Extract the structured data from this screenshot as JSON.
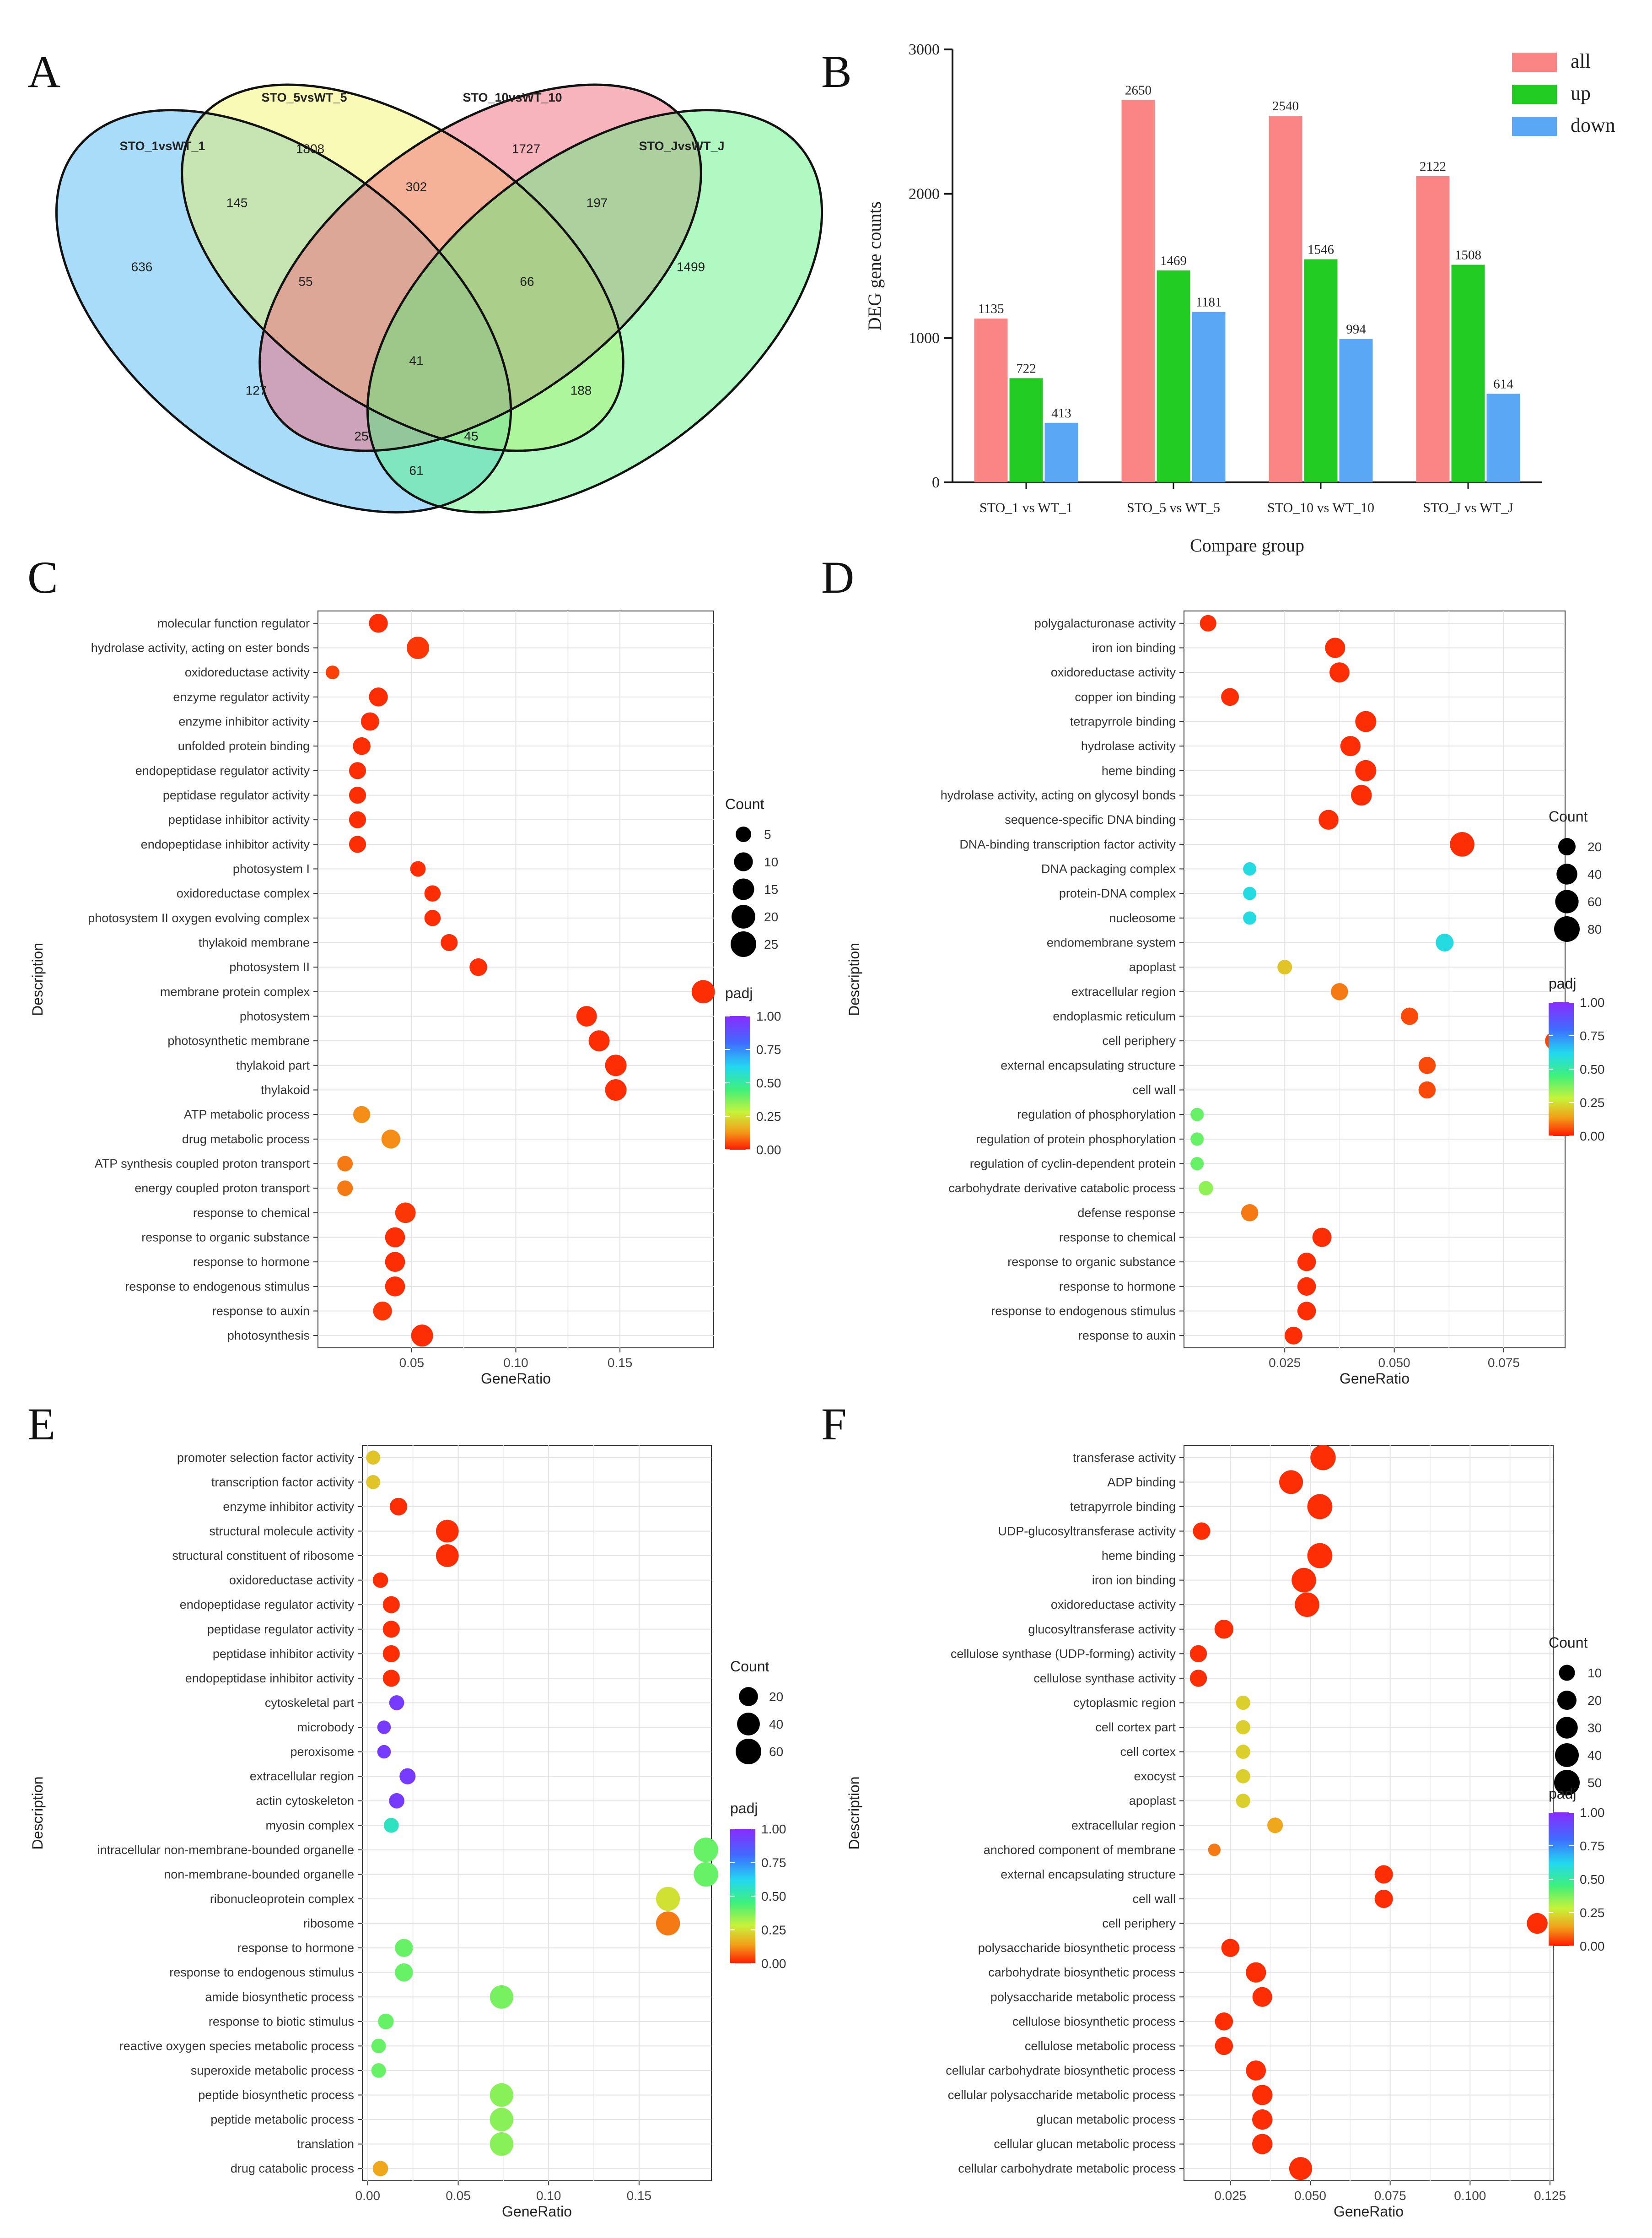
{
  "chart_data": [
    {
      "panel": "A",
      "type": "venn",
      "sets": [
        "STO_1vsWT_1",
        "STO_5vsWT_5",
        "STO_10vsWT_10",
        "STO_JvsWT_J"
      ],
      "set_colors": [
        "#3fb1f0",
        "#f2f24a",
        "#f26a7a",
        "#4ff27a"
      ],
      "regions": [
        {
          "label": "636",
          "sets": [
            "STO_1vsWT_1"
          ]
        },
        {
          "label": "1808",
          "sets": [
            "STO_5vsWT_5"
          ]
        },
        {
          "label": "1727",
          "sets": [
            "STO_10vsWT_10"
          ]
        },
        {
          "label": "1499",
          "sets": [
            "STO_JvsWT_J"
          ]
        },
        {
          "label": "145",
          "sets": [
            "STO_1vsWT_1",
            "STO_5vsWT_5"
          ]
        },
        {
          "label": "302",
          "sets": [
            "STO_5vsWT_5",
            "STO_10vsWT_10"
          ]
        },
        {
          "label": "197",
          "sets": [
            "STO_10vsWT_10",
            "STO_JvsWT_J"
          ]
        },
        {
          "label": "55",
          "sets": [
            "STO_1vsWT_1",
            "STO_5vsWT_5",
            "STO_10vsWT_10"
          ]
        },
        {
          "label": "66",
          "sets": [
            "STO_5vsWT_5",
            "STO_10vsWT_10",
            "STO_JvsWT_J"
          ]
        },
        {
          "label": "41",
          "sets": [
            "STO_1vsWT_1",
            "STO_5vsWT_5",
            "STO_10vsWT_10",
            "STO_JvsWT_J"
          ]
        },
        {
          "label": "127",
          "sets": [
            "STO_1vsWT_1",
            "STO_10vsWT_10"
          ]
        },
        {
          "label": "188",
          "sets": [
            "STO_5vsWT_5",
            "STO_JvsWT_J"
          ]
        },
        {
          "label": "25",
          "sets": [
            "STO_1vsWT_1",
            "STO_10vsWT_10",
            "STO_JvsWT_J"
          ]
        },
        {
          "label": "45",
          "sets": [
            "STO_1vsWT_1",
            "STO_5vsWT_5",
            "STO_JvsWT_J"
          ]
        },
        {
          "label": "61",
          "sets": [
            "STO_1vsWT_1",
            "STO_JvsWT_J"
          ]
        }
      ]
    },
    {
      "panel": "B",
      "type": "bar",
      "categories": [
        "STO_1 vs WT_1",
        "STO_5 vs WT_5",
        "STO_10 vs WT_10",
        "STO_J vs WT_J"
      ],
      "series": [
        {
          "name": "all",
          "color": "#f98585",
          "values": [
            1135,
            2650,
            2540,
            2122
          ]
        },
        {
          "name": "up",
          "color": "#23cc23",
          "values": [
            722,
            1469,
            1546,
            1508
          ]
        },
        {
          "name": "down",
          "color": "#5aa8f5",
          "values": [
            413,
            1181,
            994,
            614
          ]
        }
      ],
      "xlabel": "Compare group",
      "ylabel": "DEG gene counts",
      "ylim": [
        0,
        3000
      ],
      "yticks": [
        0,
        1000,
        2000,
        3000
      ],
      "legend": "top-right"
    },
    {
      "panel": "C",
      "type": "scatter",
      "xlabel": "GeneRatio",
      "ylabel": "Description",
      "xlim": [
        0.005,
        0.195
      ],
      "xticks": [
        0.05,
        0.1,
        0.15
      ],
      "xticklabels": [
        "0.05",
        "0.10",
        "0.15"
      ],
      "size_legend": {
        "title": "Count",
        "values": [
          5,
          10,
          15,
          20,
          25
        ]
      },
      "color_legend": {
        "title": "padj",
        "ticks": [
          "1.00",
          "0.75",
          "0.50",
          "0.25",
          "0.00"
        ]
      },
      "terms": [
        "molecular function regulator",
        "hydrolase activity, acting on ester bonds",
        "oxidoreductase activity",
        "enzyme regulator activity",
        "enzyme inhibitor activity",
        "unfolded protein binding",
        "endopeptidase regulator activity",
        "peptidase regulator activity",
        "peptidase inhibitor activity",
        "endopeptidase inhibitor activity",
        "photosystem I",
        "oxidoreductase complex",
        "photosystem II oxygen evolving complex",
        "thylakoid membrane",
        "photosystem II",
        "membrane protein complex",
        "photosystem",
        "photosynthetic membrane",
        "thylakoid part",
        "thylakoid",
        "ATP metabolic process",
        "drug metabolic process",
        "ATP synthesis coupled proton transport",
        "energy coupled proton transport",
        "response to chemical",
        "response to organic substance",
        "response to hormone",
        "response to endogenous stimulus",
        "response to auxin",
        "photosynthesis"
      ],
      "gene_ratio": [
        0.034,
        0.053,
        0.012,
        0.034,
        0.03,
        0.026,
        0.024,
        0.024,
        0.024,
        0.024,
        0.053,
        0.06,
        0.06,
        0.068,
        0.082,
        0.19,
        0.134,
        0.14,
        0.148,
        0.148,
        0.026,
        0.04,
        0.018,
        0.018,
        0.047,
        0.042,
        0.042,
        0.042,
        0.036,
        0.055
      ],
      "count": [
        10,
        17,
        3,
        10,
        9,
        8,
        7,
        7,
        7,
        7,
        5,
        6,
        6,
        7,
        8,
        19,
        13,
        14,
        15,
        15,
        7,
        10,
        5,
        5,
        13,
        12,
        12,
        12,
        10,
        16
      ],
      "padj": [
        0.02,
        0.03,
        0.04,
        0.02,
        0.02,
        0.02,
        0.02,
        0.02,
        0.02,
        0.02,
        0.02,
        0.02,
        0.02,
        0.02,
        0.02,
        0.02,
        0.02,
        0.02,
        0.02,
        0.02,
        0.12,
        0.12,
        0.1,
        0.1,
        0.03,
        0.02,
        0.02,
        0.02,
        0.03,
        0.02
      ]
    },
    {
      "panel": "D",
      "type": "scatter",
      "xlabel": "GeneRatio",
      "ylabel": "Description",
      "xlim": [
        0.002,
        0.089
      ],
      "xticks": [
        0.025,
        0.05,
        0.075
      ],
      "xticklabels": [
        "0.025",
        "0.050",
        "0.075"
      ],
      "size_legend": {
        "title": "Count",
        "values": [
          20,
          40,
          60,
          80
        ]
      },
      "color_legend": {
        "title": "padj",
        "ticks": [
          "1.00",
          "0.75",
          "0.50",
          "0.25",
          "0.00"
        ]
      },
      "terms": [
        "polygalacturonase activity",
        "iron ion binding",
        "oxidoreductase activity",
        "copper ion binding",
        "tetrapyrrole binding",
        "hydrolase activity",
        "heme binding",
        "hydrolase activity, acting on glycosyl bonds",
        "sequence-specific DNA binding",
        "DNA-binding transcription factor activity",
        "DNA packaging complex",
        "protein-DNA complex",
        "nucleosome",
        "endomembrane system",
        "apoplast",
        "extracellular region",
        "endoplasmic reticulum",
        "cell periphery",
        "external encapsulating structure",
        "cell wall",
        "regulation of phosphorylation",
        "regulation of protein phosphorylation",
        "regulation of cyclin-dependent protein",
        "carbohydrate derivative catabolic process",
        "defense response",
        "response to chemical",
        "response to organic substance",
        "response to hormone",
        "response to endogenous stimulus",
        "response to auxin"
      ],
      "gene_ratio": [
        0.0075,
        0.0365,
        0.0375,
        0.0125,
        0.0435,
        0.04,
        0.0435,
        0.0425,
        0.035,
        0.0655,
        0.017,
        0.017,
        0.017,
        0.0615,
        0.025,
        0.0375,
        0.0535,
        0.0865,
        0.0575,
        0.0575,
        0.005,
        0.005,
        0.005,
        0.007,
        0.017,
        0.0335,
        0.03,
        0.03,
        0.03,
        0.027
      ],
      "count": [
        16,
        36,
        35,
        22,
        42,
        36,
        42,
        40,
        34,
        70,
        5,
        5,
        5,
        22,
        9,
        19,
        20,
        24,
        19,
        19,
        5,
        5,
        5,
        8,
        19,
        30,
        26,
        26,
        26,
        22
      ],
      "padj": [
        0.02,
        0.02,
        0.02,
        0.02,
        0.02,
        0.02,
        0.02,
        0.02,
        0.02,
        0.02,
        0.6,
        0.6,
        0.6,
        0.6,
        0.2,
        0.1,
        0.05,
        0.05,
        0.05,
        0.05,
        0.4,
        0.4,
        0.4,
        0.35,
        0.1,
        0.02,
        0.02,
        0.02,
        0.02,
        0.02
      ]
    },
    {
      "panel": "E",
      "type": "scatter",
      "xlabel": "GeneRatio",
      "ylabel": "Description",
      "xlim": [
        -0.003,
        0.19
      ],
      "xticks": [
        0.0,
        0.05,
        0.1,
        0.15
      ],
      "xticklabels": [
        "0.00",
        "0.05",
        "0.10",
        "0.15"
      ],
      "size_legend": {
        "title": "Count",
        "values": [
          20,
          40,
          60
        ]
      },
      "color_legend": {
        "title": "padj",
        "ticks": [
          "1.00",
          "0.75",
          "0.50",
          "0.25",
          "0.00"
        ]
      },
      "terms": [
        "promoter selection factor activity",
        "transcription factor activity",
        "enzyme inhibitor activity",
        "structural molecule activity",
        "structural constituent of ribosome",
        "oxidoreductase activity",
        "endopeptidase regulator activity",
        "peptidase regulator activity",
        "peptidase inhibitor activity",
        "endopeptidase inhibitor activity",
        "cytoskeletal part",
        "microbody",
        "peroxisome",
        "extracellular region",
        "actin cytoskeleton",
        "myosin complex",
        "intracellular non-membrane-bounded organelle",
        "non-membrane-bounded organelle",
        "ribonucleoprotein complex",
        "ribosome",
        "response to hormone",
        "response to endogenous stimulus",
        "amide biosynthetic process",
        "response to biotic stimulus",
        "reactive oxygen species metabolic process",
        "superoxide metabolic process",
        "peptide biosynthetic process",
        "peptide metabolic process",
        "translation",
        "drug catabolic process"
      ],
      "gene_ratio": [
        0.003,
        0.003,
        0.017,
        0.044,
        0.044,
        0.007,
        0.013,
        0.013,
        0.013,
        0.013,
        0.016,
        0.009,
        0.009,
        0.022,
        0.016,
        0.013,
        0.187,
        0.187,
        0.166,
        0.166,
        0.02,
        0.02,
        0.074,
        0.01,
        0.006,
        0.006,
        0.074,
        0.074,
        0.074,
        0.007
      ],
      "count": [
        4,
        4,
        14,
        40,
        40,
        7,
        12,
        12,
        12,
        12,
        6,
        3,
        3,
        9,
        7,
        6,
        52,
        52,
        48,
        48,
        16,
        16,
        44,
        8,
        5,
        5,
        45,
        45,
        45,
        7
      ],
      "padj": [
        0.2,
        0.2,
        0.02,
        0.02,
        0.02,
        0.02,
        0.02,
        0.02,
        0.02,
        0.02,
        0.95,
        0.95,
        0.95,
        0.95,
        0.95,
        0.55,
        0.4,
        0.4,
        0.25,
        0.1,
        0.4,
        0.4,
        0.38,
        0.4,
        0.4,
        0.4,
        0.36,
        0.36,
        0.36,
        0.15
      ]
    },
    {
      "panel": "F",
      "type": "scatter",
      "xlabel": "GeneRatio",
      "ylabel": "Description",
      "xlim": [
        0.0105,
        0.126
      ],
      "xticks": [
        0.025,
        0.05,
        0.075,
        0.1,
        0.125
      ],
      "xticklabels": [
        "0.025",
        "0.050",
        "0.075",
        "0.100",
        "0.125"
      ],
      "size_legend": {
        "title": "Count",
        "values": [
          10,
          20,
          30,
          40,
          50
        ]
      },
      "color_legend": {
        "title": "padj",
        "ticks": [
          "1.00",
          "0.75",
          "0.50",
          "0.25",
          "0.00"
        ]
      },
      "terms": [
        "transferase activity",
        "ADP binding",
        "tetrapyrrole binding",
        "UDP-glucosyltransferase activity",
        "heme binding",
        "iron ion binding",
        "oxidoreductase activity",
        "glucosyltransferase activity",
        "cellulose synthase (UDP-forming) activity",
        "cellulose synthase activity",
        "cytoplasmic region",
        "cell cortex part",
        "cell cortex",
        "exocyst",
        "apoplast",
        "extracellular region",
        "anchored component of membrane",
        "external encapsulating structure",
        "cell wall",
        "cell periphery",
        "polysaccharide biosynthetic process",
        "carbohydrate biosynthetic process",
        "polysaccharide metabolic process",
        "cellulose biosynthetic process",
        "cellulose metabolic process",
        "cellular carbohydrate biosynthetic process",
        "cellular polysaccharide metabolic process",
        "glucan metabolic process",
        "cellular glucan metabolic process",
        "cellular carbohydrate metabolic process"
      ],
      "gene_ratio": [
        0.054,
        0.044,
        0.053,
        0.016,
        0.053,
        0.048,
        0.049,
        0.023,
        0.015,
        0.015,
        0.029,
        0.029,
        0.029,
        0.029,
        0.029,
        0.039,
        0.02,
        0.073,
        0.073,
        0.121,
        0.025,
        0.033,
        0.035,
        0.023,
        0.023,
        0.033,
        0.035,
        0.035,
        0.035,
        0.047
      ],
      "count": [
        48,
        40,
        47,
        14,
        47,
        44,
        44,
        19,
        13,
        13,
        6,
        6,
        6,
        6,
        6,
        9,
        3,
        17,
        17,
        26,
        16,
        24,
        22,
        16,
        16,
        23,
        24,
        24,
        24,
        36
      ],
      "padj": [
        0.02,
        0.02,
        0.02,
        0.02,
        0.02,
        0.02,
        0.02,
        0.02,
        0.02,
        0.02,
        0.22,
        0.22,
        0.22,
        0.22,
        0.22,
        0.15,
        0.1,
        0.02,
        0.02,
        0.02,
        0.02,
        0.02,
        0.02,
        0.02,
        0.02,
        0.02,
        0.02,
        0.02,
        0.02,
        0.02
      ]
    }
  ],
  "panel_letters": [
    "A",
    "B",
    "C",
    "D",
    "E",
    "F"
  ]
}
